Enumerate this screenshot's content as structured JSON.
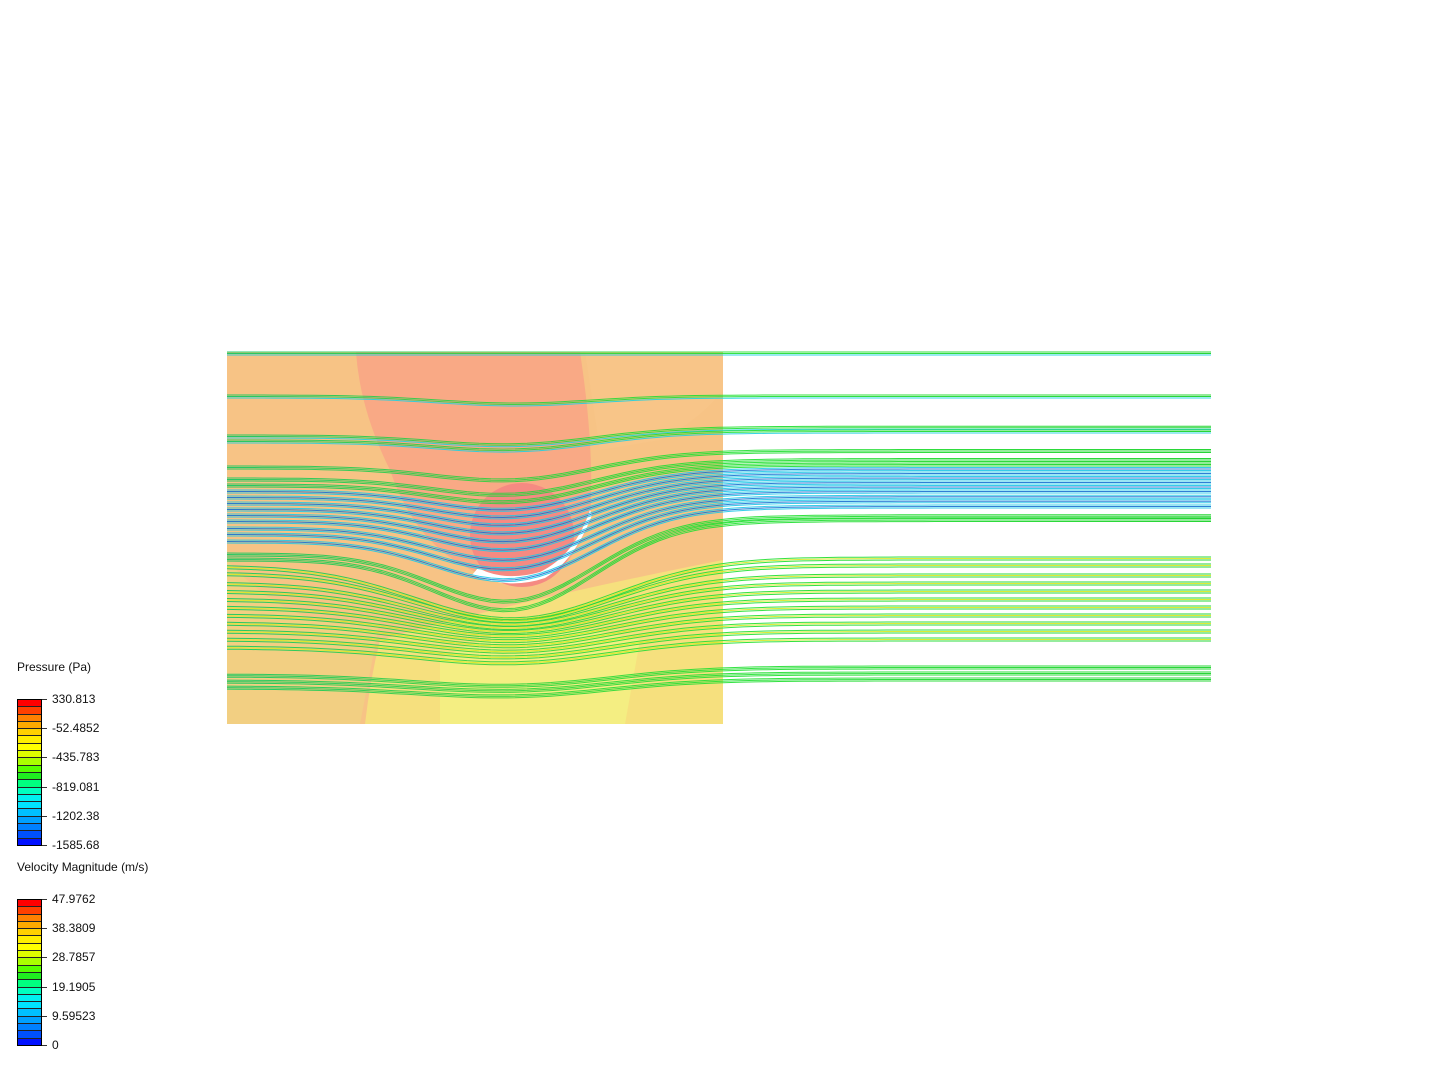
{
  "pressure_legend": {
    "title": "Pressure (Pa)",
    "labels": [
      "330.813",
      "-52.4852",
      "-435.783",
      "-819.081",
      "-1202.38",
      "-1585.68"
    ]
  },
  "velocity_legend": {
    "title": "Velocity Magnitude (m/s)",
    "labels": [
      "47.9762",
      "38.3809",
      "28.7857",
      "19.1905",
      "9.59523",
      "0"
    ]
  },
  "colormap": [
    "#ff0000",
    "#ff4000",
    "#ff8000",
    "#ffaa00",
    "#ffd000",
    "#ffee00",
    "#ffff00",
    "#dfff00",
    "#aaff00",
    "#55ff00",
    "#20ee20",
    "#00ff80",
    "#00ffbf",
    "#00f0f0",
    "#00e5ff",
    "#00c0ff",
    "#00a0ff",
    "#0080ff",
    "#0050ff",
    "#0010ff"
  ],
  "contour_colors": {
    "base": "#f7c385",
    "left_low": "#f2cf82",
    "high": "#f9a985",
    "stagnation": "#f58a82",
    "low": "#f6e07e",
    "lowest": "#f4ee82"
  }
}
